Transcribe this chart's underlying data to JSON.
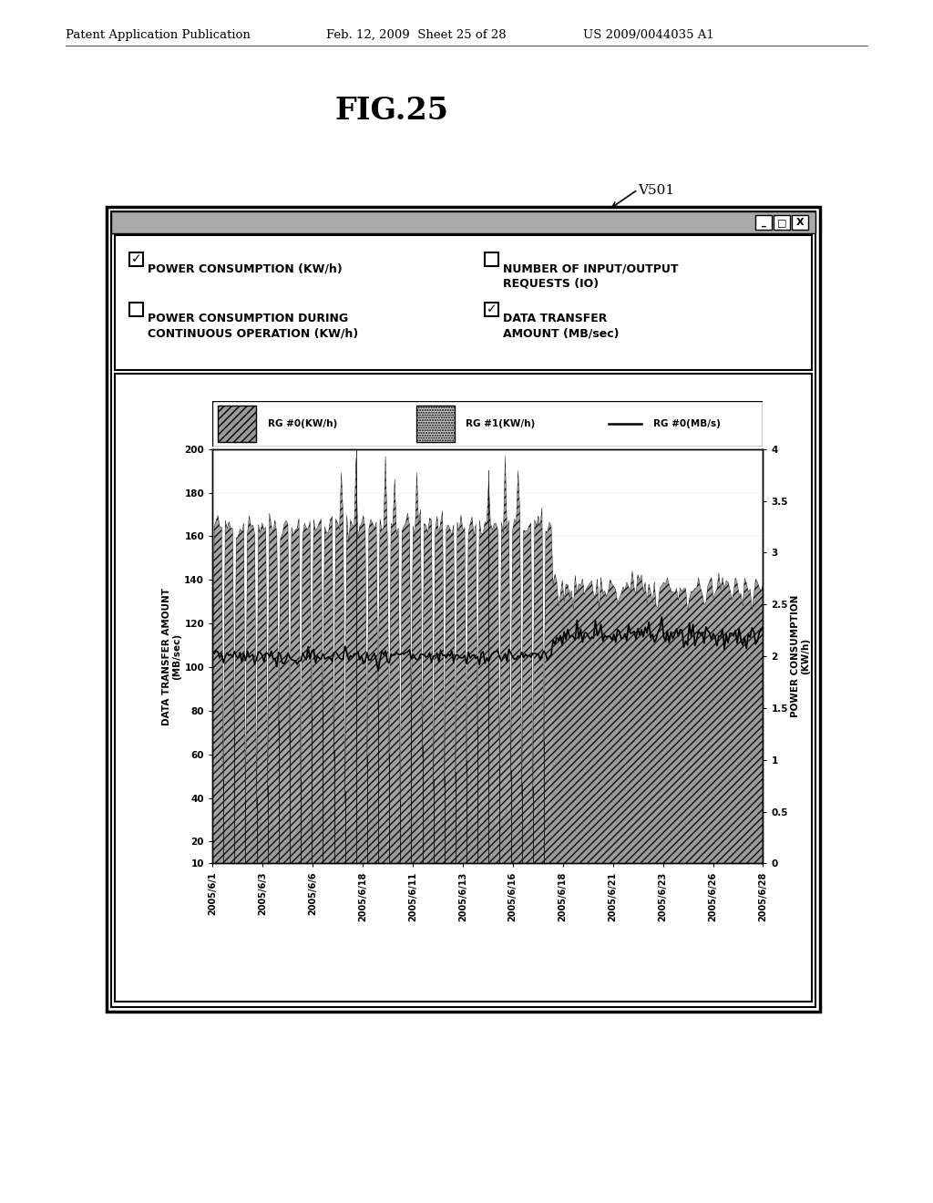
{
  "fig_title": "FIG.25",
  "patent_header_left": "Patent Application Publication",
  "patent_header_mid": "Feb. 12, 2009  Sheet 25 of 28",
  "patent_header_right": "US 2009/0044035 A1",
  "window_label": "V501",
  "x_labels": [
    "2005/6/1",
    "2005/6/3",
    "2005/6/6",
    "2005/6/18",
    "2005/6/11",
    "2005/6/13",
    "2005/6/16",
    "2005/6/18",
    "2005/6/21",
    "2005/6/23",
    "2005/6/26",
    "2005/6/28"
  ],
  "y_left_ticks": [
    10,
    20,
    40,
    60,
    80,
    100,
    120,
    140,
    160,
    180,
    200
  ],
  "y_right_ticks": [
    0,
    0.5,
    1,
    1.5,
    2,
    2.5,
    3,
    3.5,
    4
  ],
  "y_left_label": "DATA TRANSFER AMOUNT\n(MB/sec)",
  "y_right_label": "POWER CONSUMPTION\n(KW/h)",
  "bg_color": "#ffffff"
}
